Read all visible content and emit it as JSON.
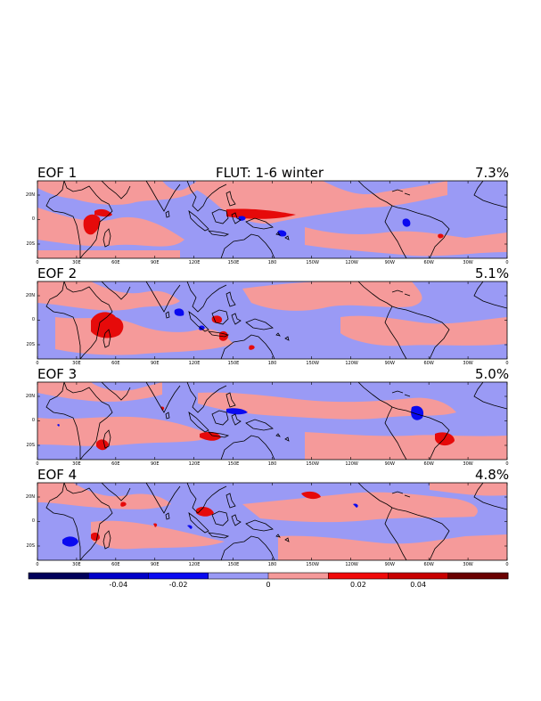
{
  "title": "FLUT: 1-6 winter",
  "panels": [
    {
      "label": "EOF 1",
      "variance": "7.3%"
    },
    {
      "label": "EOF 2",
      "variance": "5.1%"
    },
    {
      "label": "EOF 3",
      "variance": "5.0%"
    },
    {
      "label": "EOF 4",
      "variance": "4.8%"
    }
  ],
  "lat_ticks": [
    "20N",
    "0",
    "20S"
  ],
  "lon_ticks": [
    "0",
    "30E",
    "60E",
    "90E",
    "120E",
    "150E",
    "180",
    "150W",
    "120W",
    "90W",
    "60W",
    "30W",
    "0"
  ],
  "colorbar": {
    "ticks": [
      "-0.04",
      "-0.02",
      "0",
      "0.02",
      "0.04"
    ],
    "colors": [
      "#00005a",
      "#0000c8",
      "#0a0af0",
      "#9a9af5",
      "#f59a9a",
      "#f00a0a",
      "#c80000",
      "#6a0000"
    ]
  },
  "colors": {
    "light_blue": "#9a9af5",
    "light_red": "#f59a9a",
    "dark_blue": "#0a0af0",
    "dark_red": "#e60a0a",
    "coast": "#000000"
  }
}
